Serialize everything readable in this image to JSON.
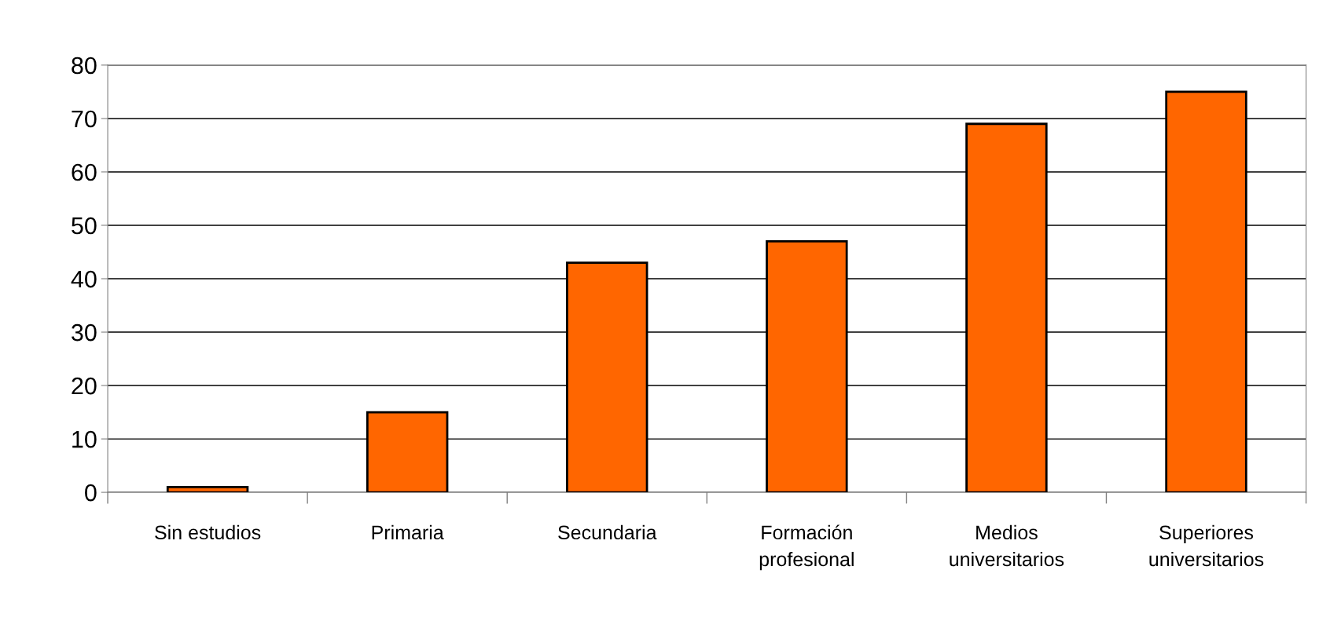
{
  "chart_data": {
    "type": "bar",
    "categories": [
      "Sin estudios",
      "Primaria",
      "Secundaria",
      "Formación\nprofesional",
      "Medios\nuniversitarios",
      "Superiores\nuniversitarios"
    ],
    "values": [
      1,
      15,
      43,
      47,
      69,
      75
    ],
    "color": "#ff6600",
    "ylim": [
      0,
      80
    ],
    "yticks": [
      0,
      10,
      20,
      30,
      40,
      50,
      60,
      70,
      80
    ],
    "grid": "y"
  }
}
